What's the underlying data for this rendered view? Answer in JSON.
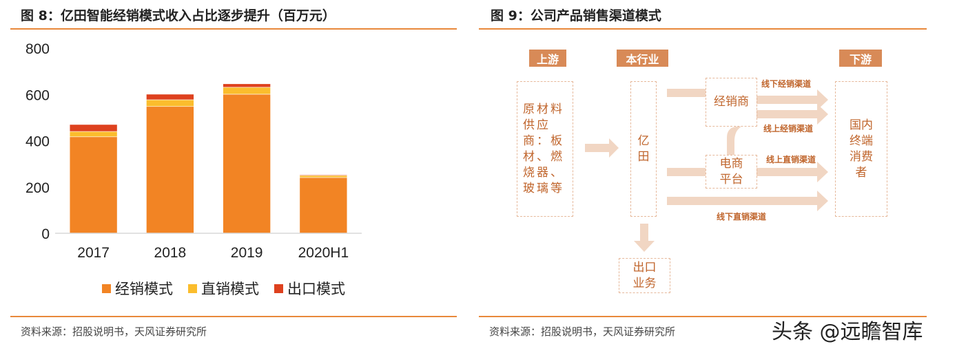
{
  "left_panel": {
    "title": "图 8：亿田智能经销模式收入占比逐步提升（百万元）",
    "source": "资料来源：招股说明书，天风证券研究所"
  },
  "right_panel": {
    "title": "图 9：公司产品销售渠道模式",
    "source": "资料来源：招股说明书，天风证券研究所",
    "diagram": {
      "upstream_tag": "上游",
      "industry_tag": "本行业",
      "downstream_tag": "下游",
      "supplier": "原材料供应商：板材、燃烧器、玻璃等",
      "company": "亿田",
      "dealer": "经销商",
      "ecommerce": "电商平台",
      "consumer": "国内终端消费者",
      "export": "出口业务",
      "channels": [
        "线下经销渠道",
        "线上经销渠道",
        "线上直销渠道",
        "线下直销渠道"
      ],
      "colors": {
        "tag": "#d88a57",
        "text": "#c0652c",
        "arrow": "#f1d6c3",
        "border": "#e6b89a"
      }
    }
  },
  "watermark": "头条 @远瞻智库",
  "chart_data": {
    "type": "bar",
    "stacked": true,
    "categories": [
      "2017",
      "2018",
      "2019",
      "2020H1"
    ],
    "series": [
      {
        "name": "经销模式",
        "values": [
          417,
          548,
          601,
          241
        ],
        "color": "#f28424"
      },
      {
        "name": "直销模式",
        "values": [
          23,
          29,
          30,
          9
        ],
        "color": "#fbbd2d"
      },
      {
        "name": "出口模式",
        "values": [
          30,
          24,
          15,
          3
        ],
        "color": "#de411e"
      }
    ],
    "ylim": [
      0,
      800
    ],
    "yticks": [
      0,
      200,
      400,
      600,
      800
    ],
    "grid": false,
    "legend": "bottom"
  }
}
